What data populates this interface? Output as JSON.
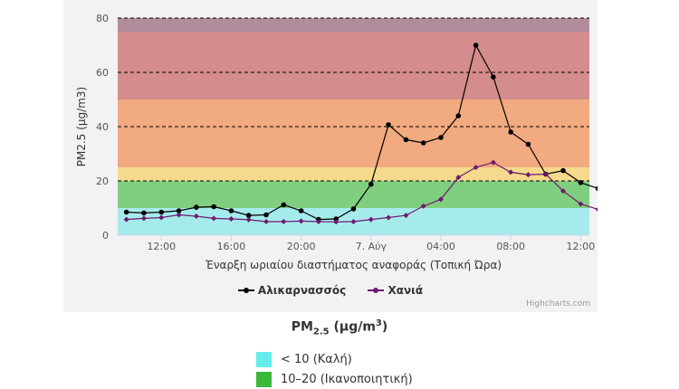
{
  "chart_data": {
    "type": "line",
    "ylabel": "PM2.5 (μg/m3)",
    "xlabel": "Έναρξη ωριαίου διαστήματος αναφοράς (Τοπική Ώρα)",
    "ylim": [
      0,
      80
    ],
    "yticks": [
      0,
      20,
      40,
      60,
      80
    ],
    "x_start_hour": 9.5,
    "x_end_hour": 36.5,
    "xtick_hours": [
      12,
      16,
      20,
      24,
      28,
      32,
      36
    ],
    "xtick_labels": [
      "12:00",
      "16:00",
      "20:00",
      "7. Αύγ",
      "04:00",
      "08:00",
      "12:00"
    ],
    "x_hours": [
      10,
      11,
      12,
      13,
      14,
      15,
      16,
      17,
      18,
      19,
      20,
      21,
      22,
      23,
      24,
      25,
      26,
      27,
      28,
      29,
      30,
      31,
      32,
      33,
      34,
      35,
      36,
      37
    ],
    "bands": [
      {
        "from": 0,
        "to": 10,
        "color": "#a6ebec"
      },
      {
        "from": 10,
        "to": 20,
        "color": "#80cf80"
      },
      {
        "from": 20,
        "to": 25,
        "color": "#f5d98c"
      },
      {
        "from": 25,
        "to": 50,
        "color": "#f2aa80"
      },
      {
        "from": 50,
        "to": 75,
        "color": "#d48d8c"
      },
      {
        "from": 75,
        "to": 80,
        "color": "#b08c9c"
      }
    ],
    "dashed_grid": [
      20,
      40,
      60,
      80
    ],
    "series": [
      {
        "name": "Αλικαρνασσός",
        "color": "#000000",
        "values": [
          8.5,
          8.2,
          8.5,
          9.0,
          10.3,
          10.5,
          9.0,
          7.3,
          7.5,
          11.2,
          9.0,
          5.8,
          6.0,
          9.7,
          18.8,
          40.7,
          35.2,
          34.0,
          36.0,
          44.0,
          70.0,
          58.3,
          38.0,
          33.5,
          22.5,
          23.8,
          19.4,
          17.2
        ]
      },
      {
        "name": "Χανιά",
        "color": "#6d1a6e",
        "values": [
          5.8,
          6.2,
          6.5,
          7.5,
          7.0,
          6.2,
          6.0,
          5.7,
          5.0,
          5.0,
          5.2,
          5.0,
          4.9,
          5.0,
          5.8,
          6.5,
          7.3,
          10.7,
          13.2,
          21.3,
          25.0,
          26.8,
          23.2,
          22.3,
          22.5,
          16.3,
          11.5,
          9.5
        ]
      }
    ],
    "credits": "Highcharts.com"
  },
  "legend_title": {
    "main": "PM",
    "sub": "2.5",
    "unit_pre": " (μg/m",
    "unit_sup": "3",
    "unit_post": ")"
  },
  "categories": [
    {
      "label": "< 10 (Καλή)",
      "color": "#66ecec"
    },
    {
      "label": "10–20 (Ικανοποιητική)",
      "color": "#3cb83c"
    }
  ]
}
